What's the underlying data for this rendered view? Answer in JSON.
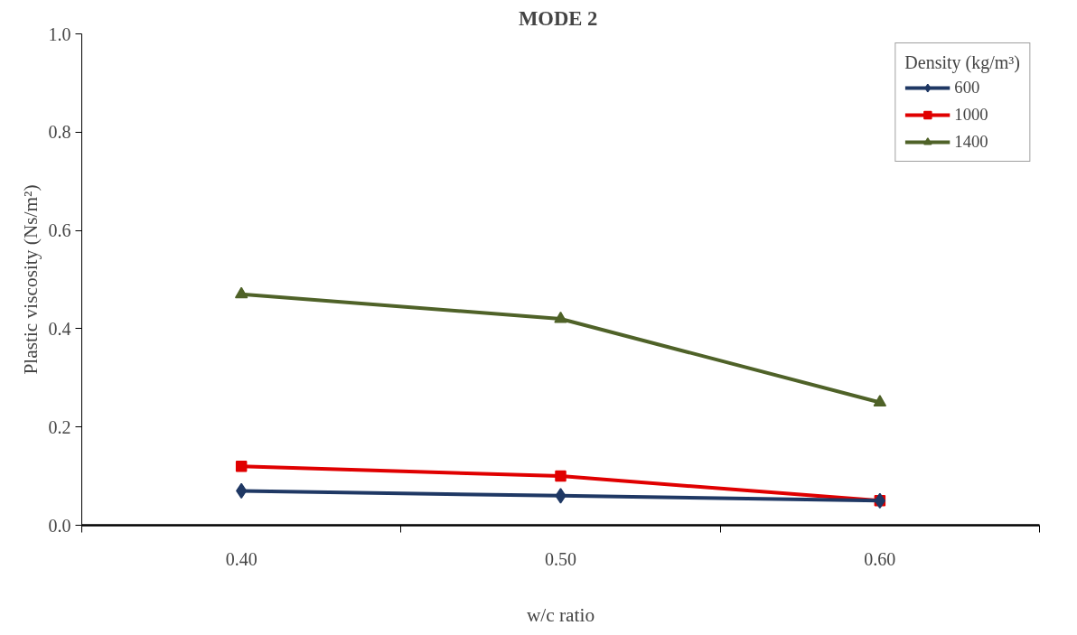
{
  "chart_data": {
    "type": "line",
    "title": "MODE  2",
    "xlabel": "w/c ratio",
    "ylabel": "Plastic viscosity (Ns/m²)",
    "legend_title": "Density (kg/m³)",
    "categories": [
      "0.40",
      "0.50",
      "0.60"
    ],
    "series": [
      {
        "name": "600",
        "color": "#1f3864",
        "marker": "diamond",
        "values": [
          0.07,
          0.06,
          0.05
        ]
      },
      {
        "name": "1000",
        "color": "#e00000",
        "marker": "square",
        "values": [
          0.12,
          0.1,
          0.05
        ]
      },
      {
        "name": "1400",
        "color": "#4f6228",
        "marker": "triangle",
        "values": [
          0.47,
          0.42,
          0.25
        ]
      }
    ],
    "ylim": [
      0,
      1
    ],
    "yticks": [
      {
        "value": 0,
        "label": "0.0"
      },
      {
        "value": 0.2,
        "label": "0.2"
      },
      {
        "value": 0.4,
        "label": "0.4"
      },
      {
        "value": 0.6,
        "label": "0.6"
      },
      {
        "value": 0.8,
        "label": "0.8"
      },
      {
        "value": 1,
        "label": "1.0"
      }
    ],
    "grid": false,
    "legend": "top right"
  }
}
